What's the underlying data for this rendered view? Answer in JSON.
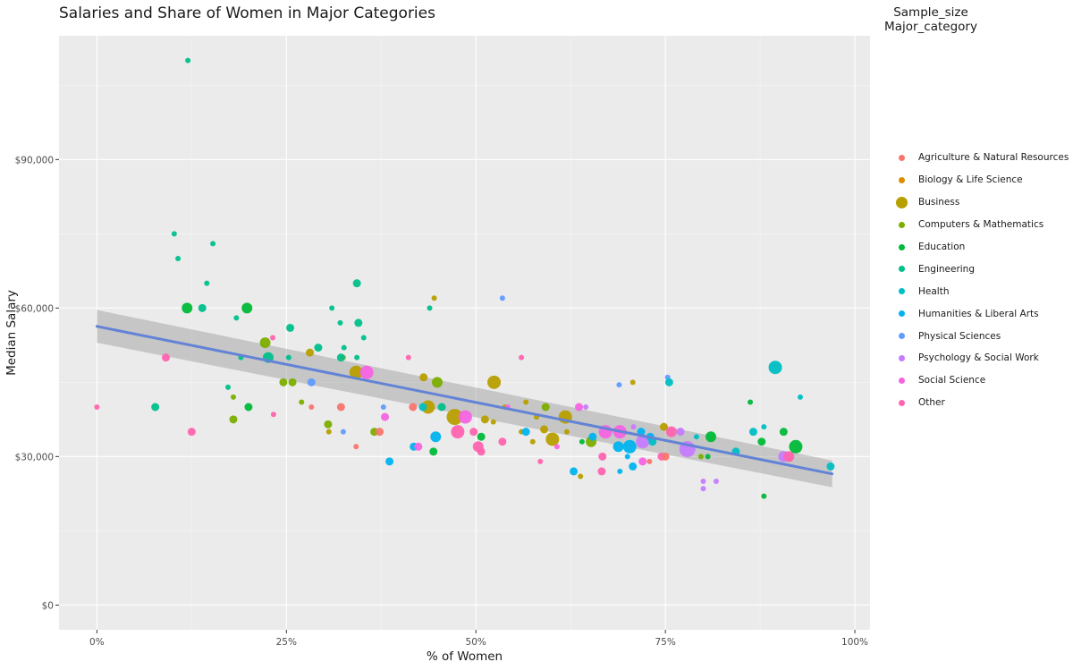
{
  "chart_data": {
    "type": "scatter",
    "title": "Salaries and Share of Women in Major Categories",
    "xlabel": "% of Women",
    "ylabel": "Median Salary",
    "xlim": [
      -0.05,
      1.02
    ],
    "ylim": [
      -5000,
      115000
    ],
    "x_ticks": [
      0,
      0.25,
      0.5,
      0.75,
      1.0
    ],
    "x_tick_labels": [
      "0%",
      "25%",
      "50%",
      "75%",
      "100%"
    ],
    "y_ticks": [
      0,
      30000,
      60000,
      90000
    ],
    "y_tick_labels": [
      "$0",
      "$30,000",
      "$60,000",
      "$90,000"
    ],
    "grid": true,
    "legend_title": [
      "Sample_size",
      "Major_category"
    ],
    "legend_position": "right",
    "categories": [
      {
        "name": "Agriculture & Natural Resources",
        "color": "#F8766D"
      },
      {
        "name": "Biology & Life Science",
        "color": "#DE8C00"
      },
      {
        "name": "Business",
        "color": "#B79F00"
      },
      {
        "name": "Computers & Mathematics",
        "color": "#7CAE00"
      },
      {
        "name": "Education",
        "color": "#00BA38"
      },
      {
        "name": "Engineering",
        "color": "#00C08B"
      },
      {
        "name": "Health",
        "color": "#00BFC4"
      },
      {
        "name": "Humanities & Liberal Arts",
        "color": "#00B4F0"
      },
      {
        "name": "Physical Sciences",
        "color": "#619CFF"
      },
      {
        "name": "Psychology & Social Work",
        "color": "#C77CFF"
      },
      {
        "name": "Social Science",
        "color": "#F564E3"
      },
      {
        "name": "Other",
        "color": "#FF64B0"
      }
    ],
    "trend_line": {
      "x": [
        0,
        0.97
      ],
      "y": [
        56300,
        26500
      ],
      "ci_low": [
        53000,
        23800
      ],
      "ci_high": [
        59600,
        29200
      ],
      "color": "#6383D6"
    },
    "points": [
      {
        "x": 0.12,
        "y": 110000,
        "c": 5,
        "s": 1
      },
      {
        "x": 0.102,
        "y": 75000,
        "c": 5,
        "s": 1
      },
      {
        "x": 0.153,
        "y": 73000,
        "c": 5,
        "s": 1
      },
      {
        "x": 0.107,
        "y": 70000,
        "c": 5,
        "s": 1
      },
      {
        "x": 0.145,
        "y": 65000,
        "c": 5,
        "s": 1
      },
      {
        "x": 0.343,
        "y": 65000,
        "c": 5,
        "s": 2
      },
      {
        "x": 0.119,
        "y": 60000,
        "c": 4,
        "s": 3
      },
      {
        "x": 0.139,
        "y": 60000,
        "c": 5,
        "s": 2
      },
      {
        "x": 0.198,
        "y": 60000,
        "c": 4,
        "s": 3
      },
      {
        "x": 0.31,
        "y": 60000,
        "c": 5,
        "s": 1
      },
      {
        "x": 0.439,
        "y": 60000,
        "c": 5,
        "s": 1
      },
      {
        "x": 0.445,
        "y": 62000,
        "c": 2,
        "s": 1
      },
      {
        "x": 0.535,
        "y": 62000,
        "c": 8,
        "s": 1
      },
      {
        "x": 0.184,
        "y": 58000,
        "c": 5,
        "s": 1
      },
      {
        "x": 0.255,
        "y": 56000,
        "c": 5,
        "s": 2
      },
      {
        "x": 0.321,
        "y": 57000,
        "c": 5,
        "s": 1
      },
      {
        "x": 0.345,
        "y": 57000,
        "c": 5,
        "s": 2
      },
      {
        "x": 0.232,
        "y": 54000,
        "c": 11,
        "s": 1
      },
      {
        "x": 0.352,
        "y": 54000,
        "c": 5,
        "s": 1
      },
      {
        "x": 0.222,
        "y": 53000,
        "c": 3,
        "s": 3
      },
      {
        "x": 0.292,
        "y": 52000,
        "c": 5,
        "s": 2
      },
      {
        "x": 0.326,
        "y": 52000,
        "c": 5,
        "s": 1
      },
      {
        "x": 0.281,
        "y": 51000,
        "c": 2,
        "s": 2
      },
      {
        "x": 0.325,
        "y": 50000,
        "c": 2,
        "s": 1
      },
      {
        "x": 0.343,
        "y": 50000,
        "c": 5,
        "s": 1
      },
      {
        "x": 0.411,
        "y": 50000,
        "c": 11,
        "s": 1
      },
      {
        "x": 0.091,
        "y": 50000,
        "c": 11,
        "s": 2
      },
      {
        "x": 0.19,
        "y": 50000,
        "c": 5,
        "s": 1
      },
      {
        "x": 0.226,
        "y": 50000,
        "c": 5,
        "s": 3
      },
      {
        "x": 0.253,
        "y": 50000,
        "c": 5,
        "s": 1
      },
      {
        "x": 0.322,
        "y": 50000,
        "c": 5,
        "s": 2
      },
      {
        "x": 0.56,
        "y": 50000,
        "c": 11,
        "s": 1
      },
      {
        "x": 0.342,
        "y": 47000,
        "c": 2,
        "s": 4
      },
      {
        "x": 0.356,
        "y": 47000,
        "c": 10,
        "s": 4
      },
      {
        "x": 0.753,
        "y": 46000,
        "c": 8,
        "s": 1
      },
      {
        "x": 0.258,
        "y": 45000,
        "c": 3,
        "s": 2
      },
      {
        "x": 0.246,
        "y": 45000,
        "c": 3,
        "s": 2
      },
      {
        "x": 0.283,
        "y": 45000,
        "c": 8,
        "s": 2
      },
      {
        "x": 0.449,
        "y": 45000,
        "c": 3,
        "s": 3
      },
      {
        "x": 0.431,
        "y": 46000,
        "c": 2,
        "s": 2
      },
      {
        "x": 0.524,
        "y": 45000,
        "c": 2,
        "s": 4
      },
      {
        "x": 0.707,
        "y": 45000,
        "c": 2,
        "s": 1
      },
      {
        "x": 0.689,
        "y": 44500,
        "c": 8,
        "s": 1
      },
      {
        "x": 0.755,
        "y": 45000,
        "c": 6,
        "s": 2
      },
      {
        "x": 0.895,
        "y": 48000,
        "c": 6,
        "s": 4
      },
      {
        "x": 0.928,
        "y": 42000,
        "c": 6,
        "s": 1
      },
      {
        "x": 0.862,
        "y": 41000,
        "c": 4,
        "s": 1
      },
      {
        "x": 0.173,
        "y": 44000,
        "c": 5,
        "s": 1
      },
      {
        "x": 0.18,
        "y": 42000,
        "c": 3,
        "s": 1
      },
      {
        "x": 0.077,
        "y": 40000,
        "c": 5,
        "s": 2
      },
      {
        "x": 0.0,
        "y": 40000,
        "c": 11,
        "s": 1
      },
      {
        "x": 0.2,
        "y": 40000,
        "c": 4,
        "s": 2
      },
      {
        "x": 0.27,
        "y": 41000,
        "c": 3,
        "s": 1
      },
      {
        "x": 0.283,
        "y": 40000,
        "c": 0,
        "s": 1
      },
      {
        "x": 0.322,
        "y": 40000,
        "c": 0,
        "s": 2
      },
      {
        "x": 0.378,
        "y": 40000,
        "c": 8,
        "s": 1
      },
      {
        "x": 0.417,
        "y": 40000,
        "c": 0,
        "s": 2
      },
      {
        "x": 0.437,
        "y": 40000,
        "c": 2,
        "s": 4
      },
      {
        "x": 0.43,
        "y": 40000,
        "c": 6,
        "s": 2
      },
      {
        "x": 0.455,
        "y": 40000,
        "c": 5,
        "s": 2
      },
      {
        "x": 0.538,
        "y": 40000,
        "c": 2,
        "s": 1
      },
      {
        "x": 0.542,
        "y": 40000,
        "c": 10,
        "s": 1
      },
      {
        "x": 0.566,
        "y": 41000,
        "c": 2,
        "s": 1
      },
      {
        "x": 0.592,
        "y": 40000,
        "c": 3,
        "s": 2
      },
      {
        "x": 0.636,
        "y": 40000,
        "c": 10,
        "s": 2
      },
      {
        "x": 0.645,
        "y": 40000,
        "c": 9,
        "s": 1
      },
      {
        "x": 0.233,
        "y": 38500,
        "c": 11,
        "s": 1
      },
      {
        "x": 0.38,
        "y": 38000,
        "c": 10,
        "s": 2
      },
      {
        "x": 0.472,
        "y": 38000,
        "c": 2,
        "s": 5
      },
      {
        "x": 0.486,
        "y": 38000,
        "c": 10,
        "s": 4
      },
      {
        "x": 0.512,
        "y": 37500,
        "c": 2,
        "s": 2
      },
      {
        "x": 0.523,
        "y": 37000,
        "c": 2,
        "s": 1
      },
      {
        "x": 0.58,
        "y": 38000,
        "c": 2,
        "s": 1
      },
      {
        "x": 0.618,
        "y": 38000,
        "c": 2,
        "s": 4
      },
      {
        "x": 0.18,
        "y": 37500,
        "c": 3,
        "s": 2
      },
      {
        "x": 0.305,
        "y": 36500,
        "c": 3,
        "s": 2
      },
      {
        "x": 0.306,
        "y": 35000,
        "c": 2,
        "s": 1
      },
      {
        "x": 0.325,
        "y": 35000,
        "c": 8,
        "s": 1
      },
      {
        "x": 0.366,
        "y": 35000,
        "c": 3,
        "s": 2
      },
      {
        "x": 0.373,
        "y": 35000,
        "c": 0,
        "s": 2
      },
      {
        "x": 0.125,
        "y": 35000,
        "c": 11,
        "s": 2
      },
      {
        "x": 0.447,
        "y": 34000,
        "c": 7,
        "s": 3
      },
      {
        "x": 0.476,
        "y": 35000,
        "c": 11,
        "s": 4
      },
      {
        "x": 0.507,
        "y": 34000,
        "c": 4,
        "s": 2
      },
      {
        "x": 0.497,
        "y": 35000,
        "c": 11,
        "s": 2
      },
      {
        "x": 0.56,
        "y": 35000,
        "c": 2,
        "s": 1
      },
      {
        "x": 0.575,
        "y": 33000,
        "c": 2,
        "s": 1
      },
      {
        "x": 0.566,
        "y": 35000,
        "c": 7,
        "s": 2
      },
      {
        "x": 0.59,
        "y": 35500,
        "c": 2,
        "s": 2
      },
      {
        "x": 0.601,
        "y": 33500,
        "c": 2,
        "s": 4
      },
      {
        "x": 0.62,
        "y": 35000,
        "c": 2,
        "s": 1
      },
      {
        "x": 0.64,
        "y": 33000,
        "c": 4,
        "s": 1
      },
      {
        "x": 0.652,
        "y": 33000,
        "c": 3,
        "s": 3
      },
      {
        "x": 0.654,
        "y": 34000,
        "c": 7,
        "s": 2
      },
      {
        "x": 0.671,
        "y": 35000,
        "c": 10,
        "s": 4
      },
      {
        "x": 0.69,
        "y": 35000,
        "c": 10,
        "s": 4
      },
      {
        "x": 0.708,
        "y": 36000,
        "c": 9,
        "s": 1
      },
      {
        "x": 0.72,
        "y": 33000,
        "c": 9,
        "s": 4
      },
      {
        "x": 0.718,
        "y": 35000,
        "c": 7,
        "s": 2
      },
      {
        "x": 0.73,
        "y": 34000,
        "c": 7,
        "s": 2
      },
      {
        "x": 0.733,
        "y": 33000,
        "c": 6,
        "s": 2
      },
      {
        "x": 0.748,
        "y": 36000,
        "c": 2,
        "s": 2
      },
      {
        "x": 0.758,
        "y": 35000,
        "c": 11,
        "s": 3
      },
      {
        "x": 0.77,
        "y": 35000,
        "c": 9,
        "s": 2
      },
      {
        "x": 0.779,
        "y": 31500,
        "c": 9,
        "s": 5
      },
      {
        "x": 0.791,
        "y": 34000,
        "c": 6,
        "s": 1
      },
      {
        "x": 0.81,
        "y": 34000,
        "c": 4,
        "s": 3
      },
      {
        "x": 0.843,
        "y": 31000,
        "c": 6,
        "s": 2
      },
      {
        "x": 0.866,
        "y": 35000,
        "c": 6,
        "s": 2
      },
      {
        "x": 0.88,
        "y": 36000,
        "c": 6,
        "s": 1
      },
      {
        "x": 0.877,
        "y": 33000,
        "c": 4,
        "s": 2
      },
      {
        "x": 0.906,
        "y": 35000,
        "c": 4,
        "s": 2
      },
      {
        "x": 0.922,
        "y": 32000,
        "c": 4,
        "s": 4
      },
      {
        "x": 0.906,
        "y": 30000,
        "c": 9,
        "s": 3
      },
      {
        "x": 0.913,
        "y": 30000,
        "c": 11,
        "s": 3
      },
      {
        "x": 0.968,
        "y": 28000,
        "c": 6,
        "s": 2
      },
      {
        "x": 0.342,
        "y": 32000,
        "c": 0,
        "s": 1
      },
      {
        "x": 0.386,
        "y": 29000,
        "c": 7,
        "s": 2
      },
      {
        "x": 0.418,
        "y": 32000,
        "c": 7,
        "s": 2
      },
      {
        "x": 0.424,
        "y": 32000,
        "c": 10,
        "s": 2
      },
      {
        "x": 0.444,
        "y": 31000,
        "c": 4,
        "s": 2
      },
      {
        "x": 0.503,
        "y": 32000,
        "c": 11,
        "s": 3
      },
      {
        "x": 0.507,
        "y": 31000,
        "c": 11,
        "s": 2
      },
      {
        "x": 0.535,
        "y": 33000,
        "c": 11,
        "s": 2
      },
      {
        "x": 0.585,
        "y": 29000,
        "c": 11,
        "s": 1
      },
      {
        "x": 0.607,
        "y": 32000,
        "c": 10,
        "s": 1
      },
      {
        "x": 0.629,
        "y": 27000,
        "c": 7,
        "s": 2
      },
      {
        "x": 0.638,
        "y": 26000,
        "c": 2,
        "s": 1
      },
      {
        "x": 0.667,
        "y": 30000,
        "c": 11,
        "s": 2
      },
      {
        "x": 0.666,
        "y": 27000,
        "c": 11,
        "s": 2
      },
      {
        "x": 0.688,
        "y": 32000,
        "c": 7,
        "s": 3
      },
      {
        "x": 0.69,
        "y": 27000,
        "c": 7,
        "s": 1
      },
      {
        "x": 0.7,
        "y": 30000,
        "c": 7,
        "s": 1
      },
      {
        "x": 0.703,
        "y": 32000,
        "c": 7,
        "s": 4
      },
      {
        "x": 0.707,
        "y": 28000,
        "c": 7,
        "s": 2
      },
      {
        "x": 0.72,
        "y": 29000,
        "c": 10,
        "s": 2
      },
      {
        "x": 0.729,
        "y": 29000,
        "c": 0,
        "s": 1
      },
      {
        "x": 0.745,
        "y": 30000,
        "c": 11,
        "s": 2
      },
      {
        "x": 0.75,
        "y": 30000,
        "c": 0,
        "s": 2
      },
      {
        "x": 0.797,
        "y": 30000,
        "c": 3,
        "s": 1
      },
      {
        "x": 0.806,
        "y": 30000,
        "c": 4,
        "s": 1
      },
      {
        "x": 0.8,
        "y": 25000,
        "c": 9,
        "s": 1
      },
      {
        "x": 0.8,
        "y": 23500,
        "c": 9,
        "s": 1
      },
      {
        "x": 0.817,
        "y": 25000,
        "c": 9,
        "s": 1
      },
      {
        "x": 0.88,
        "y": 22000,
        "c": 4,
        "s": 1
      }
    ]
  }
}
